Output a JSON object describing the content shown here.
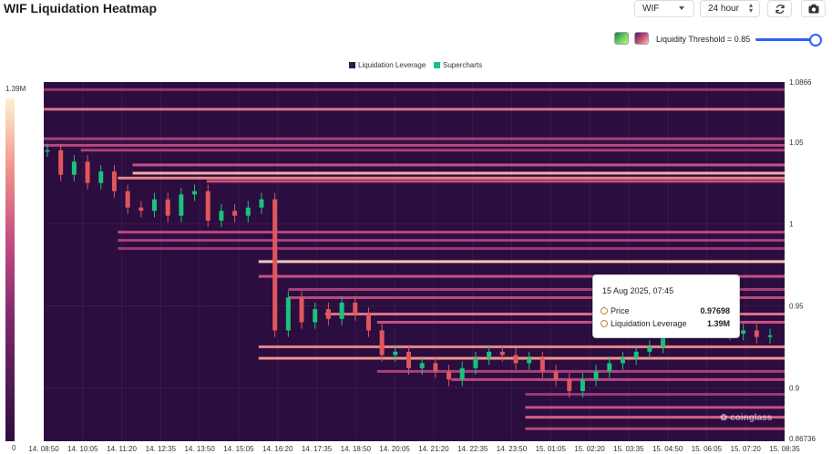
{
  "header": {
    "title": "WIF Liquidation Heatmap",
    "symbol_value": "WIF",
    "range_value": "24 hour",
    "threshold_label": "Liquidity Threshold = 0.85"
  },
  "watermark": "coinglass",
  "tooltip": {
    "date": "15 Aug 2025, 07:45",
    "price_label": "Price",
    "price_value": "0.97698",
    "leverage_label": "Liquidation Leverage",
    "leverage_value": "1.39M"
  },
  "colors": {
    "background": "#2b0d3f",
    "legend_leverage": "#3a1450",
    "legend_supercharts": "#19c37d",
    "candle_up": "#19c37d",
    "candle_down": "#e0565b",
    "slider": "#2962ff"
  },
  "icons": {
    "refresh": "refresh-icon",
    "camera": "camera-icon",
    "dropdown": "chevron-down-icon"
  },
  "chart_data": {
    "type": "heatmap",
    "title": "WIF Liquidation Heatmap",
    "legend": [
      "Liquidation Leverage",
      "Supercharts"
    ],
    "threshold": 0.85,
    "x_ticks": [
      "14. 08:50",
      "14. 10:05",
      "14. 11:20",
      "14. 12:35",
      "14. 13:50",
      "14. 15:05",
      "14. 16:20",
      "14. 17:35",
      "14. 18:50",
      "14. 20:05",
      "14. 21:20",
      "14. 22:35",
      "14. 23:50",
      "15. 01:05",
      "15. 02:20",
      "15. 03:35",
      "15. 04:50",
      "15. 06:05",
      "15. 07:20",
      "15. 08:35"
    ],
    "y_ticks": [
      "1.0866",
      "1.05",
      "1",
      "0.95",
      "0.9",
      "0.86736"
    ],
    "y_tick_values": [
      1.0866,
      1.05,
      1.0,
      0.95,
      0.9,
      0.86736
    ],
    "ylim": [
      0.86736,
      1.0866
    ],
    "colorbar": {
      "min_label": "0",
      "max_label": "1.39M"
    },
    "price_series": [
      {
        "t": 0,
        "c": 1.045
      },
      {
        "t": 1,
        "c": 1.03
      },
      {
        "t": 2,
        "c": 1.038
      },
      {
        "t": 3,
        "c": 1.025
      },
      {
        "t": 4,
        "c": 1.032
      },
      {
        "t": 5,
        "c": 1.02
      },
      {
        "t": 6,
        "c": 1.01
      },
      {
        "t": 7,
        "c": 1.008
      },
      {
        "t": 8,
        "c": 1.015
      },
      {
        "t": 9,
        "c": 1.005
      },
      {
        "t": 10,
        "c": 1.018
      },
      {
        "t": 11,
        "c": 1.02
      },
      {
        "t": 12,
        "c": 1.002
      },
      {
        "t": 13,
        "c": 1.008
      },
      {
        "t": 14,
        "c": 1.005
      },
      {
        "t": 15,
        "c": 1.01
      },
      {
        "t": 16,
        "c": 1.015
      },
      {
        "t": 17,
        "c": 0.935
      },
      {
        "t": 18,
        "c": 0.955
      },
      {
        "t": 19,
        "c": 0.94
      },
      {
        "t": 20,
        "c": 0.948
      },
      {
        "t": 21,
        "c": 0.942
      },
      {
        "t": 22,
        "c": 0.952
      },
      {
        "t": 23,
        "c": 0.945
      },
      {
        "t": 24,
        "c": 0.935
      },
      {
        "t": 25,
        "c": 0.92
      },
      {
        "t": 26,
        "c": 0.922
      },
      {
        "t": 27,
        "c": 0.912
      },
      {
        "t": 28,
        "c": 0.915
      },
      {
        "t": 29,
        "c": 0.91
      },
      {
        "t": 30,
        "c": 0.905
      },
      {
        "t": 31,
        "c": 0.912
      },
      {
        "t": 32,
        "c": 0.918
      },
      {
        "t": 33,
        "c": 0.922
      },
      {
        "t": 34,
        "c": 0.92
      },
      {
        "t": 35,
        "c": 0.915
      },
      {
        "t": 36,
        "c": 0.918
      },
      {
        "t": 37,
        "c": 0.91
      },
      {
        "t": 38,
        "c": 0.905
      },
      {
        "t": 39,
        "c": 0.898
      },
      {
        "t": 40,
        "c": 0.905
      },
      {
        "t": 41,
        "c": 0.91
      },
      {
        "t": 42,
        "c": 0.915
      },
      {
        "t": 43,
        "c": 0.918
      },
      {
        "t": 44,
        "c": 0.922
      },
      {
        "t": 45,
        "c": 0.925
      },
      {
        "t": 46,
        "c": 0.935
      },
      {
        "t": 47,
        "c": 0.94
      },
      {
        "t": 48,
        "c": 0.935
      },
      {
        "t": 49,
        "c": 0.945
      },
      {
        "t": 50,
        "c": 0.935
      },
      {
        "t": 51,
        "c": 0.933
      },
      {
        "t": 52,
        "c": 0.935
      },
      {
        "t": 53,
        "c": 0.931
      },
      {
        "t": 54,
        "c": 0.932
      }
    ],
    "liquidity_levels": [
      {
        "price": 1.082,
        "intensity": 0.45,
        "start": 0.0
      },
      {
        "price": 1.07,
        "intensity": 0.7,
        "start": 0.0
      },
      {
        "price": 1.052,
        "intensity": 0.5,
        "start": 0.0
      },
      {
        "price": 1.048,
        "intensity": 0.55,
        "start": 0.0
      },
      {
        "price": 1.045,
        "intensity": 0.5,
        "start": 0.05
      },
      {
        "price": 1.036,
        "intensity": 0.6,
        "start": 0.12
      },
      {
        "price": 1.031,
        "intensity": 0.85,
        "start": 0.12
      },
      {
        "price": 1.028,
        "intensity": 0.75,
        "start": 0.1
      },
      {
        "price": 1.026,
        "intensity": 0.6,
        "start": 0.22
      },
      {
        "price": 0.995,
        "intensity": 0.55,
        "start": 0.1
      },
      {
        "price": 0.99,
        "intensity": 0.5,
        "start": 0.1
      },
      {
        "price": 0.985,
        "intensity": 0.45,
        "start": 0.1
      },
      {
        "price": 0.977,
        "intensity": 0.92,
        "start": 0.29
      },
      {
        "price": 0.968,
        "intensity": 0.6,
        "start": 0.29
      },
      {
        "price": 0.96,
        "intensity": 0.5,
        "start": 0.33
      },
      {
        "price": 0.955,
        "intensity": 0.55,
        "start": 0.33
      },
      {
        "price": 0.945,
        "intensity": 0.7,
        "start": 0.38
      },
      {
        "price": 0.94,
        "intensity": 0.6,
        "start": 0.45
      },
      {
        "price": 0.925,
        "intensity": 0.75,
        "start": 0.29
      },
      {
        "price": 0.918,
        "intensity": 0.8,
        "start": 0.29
      },
      {
        "price": 0.91,
        "intensity": 0.5,
        "start": 0.45
      },
      {
        "price": 0.905,
        "intensity": 0.55,
        "start": 0.55
      },
      {
        "price": 0.896,
        "intensity": 0.45,
        "start": 0.65
      },
      {
        "price": 0.888,
        "intensity": 0.6,
        "start": 0.65
      },
      {
        "price": 0.882,
        "intensity": 0.65,
        "start": 0.65
      },
      {
        "price": 0.875,
        "intensity": 0.55,
        "start": 0.65
      }
    ]
  }
}
